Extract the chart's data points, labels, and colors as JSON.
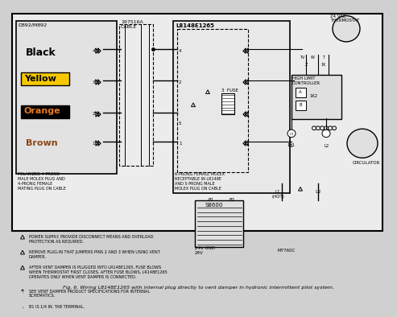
{
  "title": "Fig. 6. Wiring L8148E1265 with internal plug directly to vent damper in hydronic intermittent pilot system.",
  "background_color": "#d0d0d0",
  "wire_colors": {
    "black_label": "Black",
    "yellow_label": "Yellow",
    "orange_label": "Orange",
    "brown_label": "Brown"
  },
  "labels": {
    "d892": "D892/M892",
    "cable": "197516A\nCABLE",
    "l8148": "L8148E1265",
    "thermostat": "24 VAC\nTHERMOSTAT",
    "high_limit": "HIGH LIMIT\nCONTROLLER",
    "circulator": "CIRCULATOR",
    "s8600": "S8600",
    "m7760": "M7760C",
    "fuse": "3  FUSE",
    "l1_hot": "L1\n(HOT)",
    "l2": "L2",
    "polarized": "POLARIZED 4-PRONG\nMALE MOLEX PLUG AND\n4-PRONG FEMALE\nMATING PLUG ON CABLE",
    "six_prong": "6-PRONG FEMALE MOLEX\nRECEPTABLE IN LR148E\nAND 5-PRONG MALE\nMOLEX PLUG ON CABLE",
    "gnd_24v": "24V GND\n24V",
    "1k": "1K",
    "1k1": "1K1",
    "1k2": "1K2",
    "tv": "TV",
    "w": "W",
    "t": "T",
    "z": "Z",
    "c1": "C1",
    "b1": "B1",
    "b2": "B2",
    "l1_label": "L1",
    "l2_label": "L2",
    "a": "A",
    "b": "B"
  },
  "warnings": [
    "POWER SUPPLY. PROVIDE DISCONNECT MEANS AND OVERLOAD\nPROTECTION AS REQUIRED.",
    "REMOVE PLUG-IN THAT JUMPERS PINS 2 AND 3 WHEN USING VENT\nDAMPER.",
    "AFTER VENT DAMPER IS PLUGGED INTO LR148E1265, FUSE BLOWS\nWHEN THERMOSTAT FIRST CLOSES. AFTER FUSE BLOWS, LR148E1265\nOPERATES ONLY WHEN VENT DAMPER IS CONNECTED.",
    "SEE VENT DAMPER PRODUCT SPECIFICATIONS FOR INTERNAL\nSCHEMATICS.",
    "B1 IS 1/4 IN. TAB TERMINAL."
  ],
  "yellow_bg": "#f5c800",
  "orange_bg": "#e87820",
  "black_color": "#000000",
  "white_color": "#ffffff",
  "brown_color": "#8B4513"
}
